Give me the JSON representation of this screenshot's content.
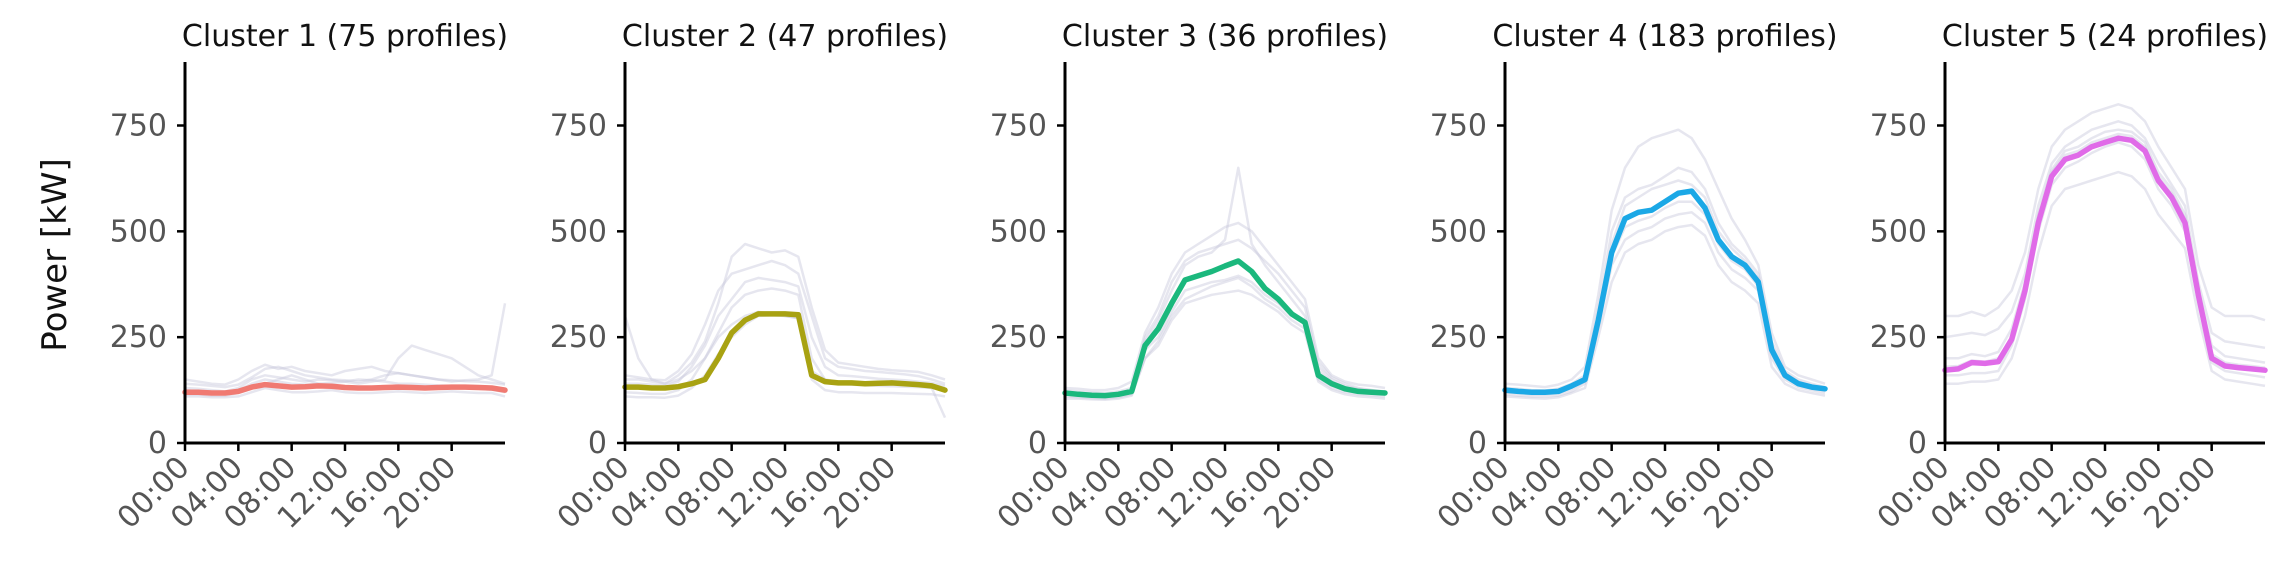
{
  "ylabel": "Power [kW]",
  "chart_data": {
    "type": "line",
    "ylabel": "Power [kW]",
    "ylim": [
      0,
      900
    ],
    "yticks": [
      0,
      250,
      500,
      750
    ],
    "xticks": [
      "00:00",
      "04:00",
      "08:00",
      "12:00",
      "16:00",
      "20:00"
    ],
    "grid": false,
    "panels": [
      {
        "title": "Cluster 1 (75 profiles)",
        "color": "#f07a72",
        "x": [
          0,
          1,
          2,
          3,
          4,
          5,
          6,
          7,
          8,
          9,
          10,
          11,
          12,
          13,
          14,
          15,
          16,
          17,
          18,
          19,
          20,
          21,
          22,
          23,
          24
        ],
        "values": [
          120,
          120,
          118,
          118,
          122,
          132,
          138,
          135,
          132,
          133,
          135,
          134,
          131,
          130,
          130,
          131,
          132,
          131,
          130,
          131,
          132,
          132,
          131,
          130,
          125
        ],
        "background_lines": [
          [
            150,
            145,
            140,
            138,
            150,
            170,
            185,
            175,
            180,
            170,
            165,
            160,
            170,
            175,
            180,
            170,
            165,
            160,
            155,
            150,
            145,
            148,
            150,
            160,
            330
          ],
          [
            110,
            110,
            108,
            108,
            110,
            120,
            130,
            125,
            120,
            120,
            122,
            125,
            120,
            118,
            118,
            120,
            122,
            120,
            118,
            120,
            122,
            120,
            118,
            118,
            110
          ],
          [
            130,
            128,
            125,
            122,
            130,
            150,
            160,
            155,
            150,
            145,
            150,
            148,
            145,
            140,
            145,
            150,
            200,
            230,
            220,
            210,
            200,
            180,
            160,
            150,
            140
          ],
          [
            125,
            122,
            120,
            120,
            125,
            140,
            150,
            145,
            140,
            138,
            140,
            142,
            145,
            150,
            148,
            145,
            140,
            140,
            138,
            136,
            135,
            135,
            134,
            132,
            128
          ],
          [
            115,
            115,
            112,
            112,
            118,
            128,
            140,
            150,
            160,
            150,
            140,
            135,
            130,
            128,
            128,
            130,
            132,
            130,
            128,
            128,
            130,
            130,
            128,
            126,
            120
          ],
          [
            140,
            138,
            135,
            132,
            138,
            155,
            175,
            180,
            170,
            160,
            155,
            150,
            148,
            145,
            150,
            160,
            165,
            160,
            155,
            150,
            148,
            146,
            145,
            142,
            138
          ]
        ]
      },
      {
        "title": "Cluster 2 (47 profiles)",
        "color": "#a8a212",
        "x": [
          0,
          1,
          2,
          3,
          4,
          5,
          6,
          7,
          8,
          9,
          10,
          11,
          12,
          13,
          14,
          15,
          16,
          17,
          18,
          19,
          20,
          21,
          22,
          23,
          24
        ],
        "values": [
          132,
          132,
          130,
          130,
          133,
          140,
          150,
          200,
          260,
          290,
          305,
          305,
          305,
          303,
          160,
          145,
          142,
          142,
          140,
          141,
          142,
          140,
          138,
          135,
          125
        ],
        "background_lines": [
          [
            160,
            155,
            150,
            148,
            170,
            210,
            280,
            360,
            400,
            410,
            420,
            430,
            420,
            400,
            300,
            200,
            180,
            175,
            170,
            168,
            165,
            162,
            158,
            150,
            140
          ],
          [
            120,
            118,
            116,
            116,
            125,
            150,
            200,
            260,
            320,
            350,
            360,
            365,
            360,
            350,
            200,
            150,
            140,
            138,
            136,
            135,
            134,
            133,
            132,
            130,
            125
          ],
          [
            140,
            140,
            138,
            135,
            145,
            180,
            230,
            300,
            340,
            380,
            390,
            385,
            380,
            370,
            250,
            180,
            160,
            158,
            155,
            152,
            150,
            148,
            145,
            142,
            135
          ],
          [
            110,
            108,
            108,
            107,
            112,
            130,
            160,
            210,
            250,
            280,
            300,
            302,
            300,
            295,
            150,
            125,
            120,
            120,
            118,
            118,
            118,
            117,
            116,
            115,
            110
          ],
          [
            150,
            150,
            145,
            140,
            160,
            190,
            240,
            330,
            440,
            470,
            460,
            450,
            455,
            440,
            320,
            220,
            190,
            185,
            180,
            175,
            172,
            170,
            168,
            160,
            150
          ],
          [
            300,
            200,
            150,
            140,
            150,
            170,
            200,
            250,
            280,
            300,
            310,
            305,
            300,
            295,
            170,
            150,
            145,
            143,
            140,
            140,
            140,
            138,
            135,
            130,
            60
          ]
        ]
      },
      {
        "title": "Cluster 3 (36 profiles)",
        "color": "#1bb87d",
        "x": [
          0,
          1,
          2,
          3,
          4,
          5,
          6,
          7,
          8,
          9,
          10,
          11,
          12,
          13,
          14,
          15,
          16,
          17,
          18,
          19,
          20,
          21,
          22,
          23,
          24
        ],
        "values": [
          118,
          115,
          113,
          112,
          115,
          122,
          230,
          270,
          330,
          385,
          395,
          405,
          418,
          430,
          405,
          365,
          340,
          305,
          285,
          160,
          140,
          128,
          122,
          120,
          118
        ],
        "background_lines": [
          [
            130,
            128,
            125,
            125,
            130,
            145,
            260,
            320,
            400,
            450,
            470,
            490,
            510,
            520,
            500,
            460,
            420,
            380,
            340,
            200,
            160,
            145,
            138,
            135,
            130
          ],
          [
            110,
            108,
            106,
            105,
            108,
            115,
            200,
            240,
            300,
            340,
            355,
            370,
            380,
            390,
            370,
            340,
            320,
            290,
            270,
            150,
            130,
            120,
            115,
            113,
            110
          ],
          [
            125,
            122,
            120,
            118,
            122,
            130,
            240,
            290,
            360,
            420,
            440,
            450,
            480,
            650,
            470,
            420,
            380,
            340,
            300,
            180,
            150,
            135,
            128,
            125,
            122
          ],
          [
            115,
            112,
            110,
            110,
            112,
            120,
            220,
            250,
            310,
            360,
            370,
            380,
            385,
            395,
            380,
            350,
            330,
            300,
            280,
            170,
            145,
            130,
            122,
            118,
            115
          ],
          [
            120,
            118,
            115,
            115,
            118,
            125,
            250,
            300,
            380,
            430,
            450,
            460,
            470,
            480,
            460,
            430,
            400,
            360,
            320,
            190,
            155,
            140,
            130,
            125,
            120
          ],
          [
            105,
            105,
            103,
            102,
            105,
            112,
            200,
            230,
            290,
            330,
            340,
            350,
            355,
            360,
            350,
            330,
            310,
            280,
            260,
            145,
            125,
            115,
            110,
            108,
            105
          ]
        ]
      },
      {
        "title": "Cluster 4 (183 profiles)",
        "color": "#1ba8e6",
        "x": [
          0,
          1,
          2,
          3,
          4,
          5,
          6,
          7,
          8,
          9,
          10,
          11,
          12,
          13,
          14,
          15,
          16,
          17,
          18,
          19,
          20,
          21,
          22,
          23,
          24
        ],
        "values": [
          125,
          122,
          120,
          120,
          122,
          135,
          150,
          290,
          450,
          530,
          545,
          550,
          570,
          590,
          595,
          555,
          480,
          440,
          420,
          380,
          220,
          160,
          140,
          132,
          128
        ],
        "background_lines": [
          [
            140,
            138,
            135,
            132,
            138,
            150,
            180,
            350,
            550,
            650,
            700,
            720,
            730,
            740,
            720,
            670,
            600,
            530,
            480,
            420,
            260,
            180,
            160,
            150,
            140
          ],
          [
            110,
            108,
            106,
            105,
            108,
            118,
            130,
            250,
            380,
            450,
            470,
            480,
            500,
            510,
            515,
            490,
            420,
            380,
            360,
            330,
            180,
            140,
            125,
            118,
            112
          ],
          [
            130,
            128,
            125,
            124,
            128,
            140,
            160,
            320,
            500,
            580,
            600,
            610,
            630,
            650,
            640,
            600,
            520,
            470,
            440,
            400,
            240,
            170,
            150,
            140,
            132
          ],
          [
            115,
            112,
            110,
            110,
            112,
            122,
            140,
            270,
            420,
            480,
            500,
            510,
            530,
            540,
            545,
            520,
            450,
            410,
            390,
            360,
            200,
            150,
            132,
            125,
            118
          ],
          [
            125,
            122,
            120,
            120,
            122,
            135,
            150,
            300,
            470,
            560,
            580,
            600,
            610,
            620,
            610,
            580,
            500,
            460,
            430,
            390,
            230,
            165,
            145,
            135,
            128
          ],
          [
            120,
            118,
            115,
            115,
            118,
            128,
            145,
            280,
            440,
            510,
            525,
            535,
            555,
            570,
            570,
            540,
            470,
            430,
            410,
            370,
            210,
            155,
            138,
            130,
            124
          ]
        ]
      },
      {
        "title": "Cluster 5 (24 profiles)",
        "color": "#e06be8",
        "x": [
          0,
          1,
          2,
          3,
          4,
          5,
          6,
          7,
          8,
          9,
          10,
          11,
          12,
          13,
          14,
          15,
          16,
          17,
          18,
          19,
          20,
          21,
          22,
          23,
          24
        ],
        "values": [
          172,
          175,
          190,
          188,
          192,
          245,
          360,
          520,
          630,
          670,
          680,
          700,
          710,
          720,
          715,
          690,
          620,
          580,
          520,
          350,
          200,
          182,
          178,
          175,
          172
        ],
        "background_lines": [
          [
            300,
            300,
            310,
            300,
            320,
            360,
            450,
            600,
            700,
            740,
            760,
            780,
            790,
            800,
            790,
            760,
            700,
            650,
            600,
            420,
            320,
            300,
            300,
            300,
            290
          ],
          [
            140,
            140,
            145,
            145,
            150,
            200,
            300,
            450,
            560,
            600,
            610,
            620,
            630,
            640,
            630,
            600,
            540,
            500,
            460,
            300,
            170,
            150,
            145,
            140,
            135
          ],
          [
            250,
            255,
            260,
            255,
            270,
            310,
            400,
            560,
            660,
            700,
            720,
            740,
            750,
            760,
            750,
            720,
            660,
            610,
            560,
            380,
            260,
            240,
            235,
            230,
            225
          ],
          [
            160,
            160,
            165,
            165,
            170,
            230,
            340,
            500,
            610,
            650,
            665,
            685,
            700,
            710,
            700,
            670,
            600,
            560,
            500,
            330,
            190,
            170,
            165,
            160,
            155
          ],
          [
            200,
            200,
            210,
            205,
            215,
            270,
            380,
            540,
            645,
            690,
            700,
            720,
            735,
            740,
            735,
            710,
            640,
            600,
            540,
            360,
            230,
            205,
            200,
            195,
            190
          ],
          [
            180,
            182,
            195,
            192,
            200,
            250,
            370,
            530,
            640,
            680,
            690,
            710,
            720,
            730,
            725,
            700,
            630,
            590,
            530,
            355,
            210,
            190,
            185,
            182,
            178
          ]
        ]
      }
    ]
  }
}
